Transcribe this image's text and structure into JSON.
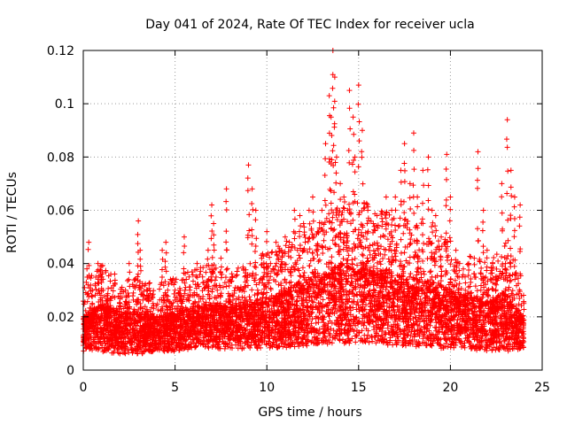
{
  "chart_data": {
    "type": "scatter",
    "title": "Day 041 of 2024, Rate Of TEC Index for receiver ucla",
    "xlabel": "GPS time / hours",
    "ylabel": "ROTI / TECUs",
    "xlim": [
      0,
      25
    ],
    "ylim": [
      0,
      0.12
    ],
    "x_ticks": [
      0,
      5,
      10,
      15,
      20,
      25
    ],
    "x_tick_labels": [
      "0",
      "5",
      "10",
      "15",
      "20",
      "25"
    ],
    "y_ticks": [
      0,
      0.02,
      0.04,
      0.06,
      0.08,
      0.1,
      0.12
    ],
    "y_tick_labels": [
      "0",
      "0.02",
      "0.04",
      "0.06",
      "0.08",
      "0.1",
      "0.12"
    ],
    "grid": true,
    "marker": "+",
    "color": "#ff0000",
    "series": [
      {
        "name": "ROTI",
        "x": [
          0.0,
          0.2,
          0.3,
          0.5,
          0.8,
          1.0,
          1.3,
          1.5,
          1.8,
          2.0,
          2.3,
          2.5,
          2.8,
          3.0,
          3.1,
          3.3,
          3.5,
          3.8,
          4.0,
          4.3,
          4.5,
          4.6,
          4.8,
          5.0,
          5.3,
          5.5,
          5.8,
          6.0,
          6.2,
          6.5,
          6.8,
          7.0,
          7.1,
          7.3,
          7.5,
          7.8,
          8.0,
          8.3,
          8.5,
          8.8,
          9.0,
          9.2,
          9.4,
          9.5,
          9.8,
          10.0,
          10.2,
          10.5,
          10.8,
          11.0,
          11.3,
          11.5,
          11.8,
          12.0,
          12.3,
          12.5,
          12.8,
          13.0,
          13.2,
          13.4,
          13.5,
          13.6,
          13.7,
          13.8,
          14.0,
          14.2,
          14.4,
          14.5,
          14.7,
          14.8,
          15.0,
          15.2,
          15.5,
          15.8,
          16.0,
          16.2,
          16.5,
          16.8,
          17.0,
          17.3,
          17.5,
          17.8,
          18.0,
          18.2,
          18.5,
          18.8,
          19.0,
          19.2,
          19.5,
          19.8,
          20.0,
          20.3,
          20.5,
          20.8,
          21.0,
          21.3,
          21.5,
          21.8,
          22.0,
          22.3,
          22.5,
          22.8,
          23.0,
          23.1,
          23.3,
          23.5,
          23.8,
          24.0
        ],
        "y": [
          0.013,
          0.038,
          0.048,
          0.03,
          0.04,
          0.035,
          0.028,
          0.036,
          0.018,
          0.025,
          0.03,
          0.04,
          0.022,
          0.056,
          0.045,
          0.02,
          0.03,
          0.025,
          0.02,
          0.045,
          0.048,
          0.03,
          0.025,
          0.03,
          0.028,
          0.05,
          0.03,
          0.025,
          0.04,
          0.035,
          0.045,
          0.062,
          0.055,
          0.03,
          0.042,
          0.068,
          0.028,
          0.025,
          0.03,
          0.035,
          0.077,
          0.068,
          0.06,
          0.03,
          0.035,
          0.052,
          0.04,
          0.048,
          0.045,
          0.05,
          0.045,
          0.06,
          0.058,
          0.055,
          0.06,
          0.065,
          0.052,
          0.06,
          0.085,
          0.103,
          0.095,
          0.12,
          0.11,
          0.08,
          0.07,
          0.065,
          0.06,
          0.105,
          0.095,
          0.08,
          0.107,
          0.09,
          0.06,
          0.055,
          0.058,
          0.05,
          0.065,
          0.06,
          0.065,
          0.075,
          0.085,
          0.07,
          0.089,
          0.065,
          0.075,
          0.08,
          0.06,
          0.058,
          0.05,
          0.081,
          0.065,
          0.045,
          0.04,
          0.035,
          0.04,
          0.042,
          0.082,
          0.06,
          0.045,
          0.04,
          0.032,
          0.07,
          0.04,
          0.094,
          0.075,
          0.065,
          0.062,
          0.025
        ]
      }
    ],
    "density_envelope": {
      "x": [
        0,
        1,
        2,
        3,
        4,
        5,
        6,
        7,
        8,
        9,
        10,
        11,
        12,
        13,
        14,
        15,
        16,
        17,
        18,
        19,
        20,
        21,
        22,
        23,
        24
      ],
      "y_low": [
        0.008,
        0.007,
        0.006,
        0.006,
        0.007,
        0.007,
        0.008,
        0.008,
        0.008,
        0.008,
        0.008,
        0.008,
        0.009,
        0.009,
        0.01,
        0.01,
        0.01,
        0.009,
        0.009,
        0.008,
        0.008,
        0.008,
        0.007,
        0.007,
        0.008
      ],
      "y_high": [
        0.02,
        0.025,
        0.022,
        0.022,
        0.02,
        0.022,
        0.024,
        0.025,
        0.024,
        0.025,
        0.028,
        0.03,
        0.034,
        0.036,
        0.04,
        0.04,
        0.038,
        0.036,
        0.035,
        0.034,
        0.03,
        0.028,
        0.026,
        0.03,
        0.02
      ]
    }
  }
}
